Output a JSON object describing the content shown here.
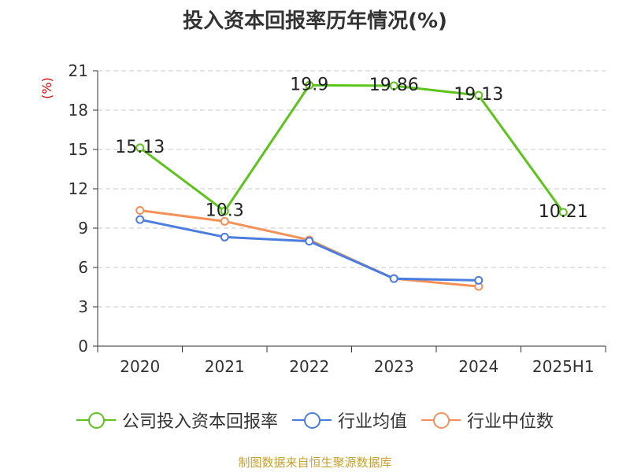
{
  "title": "投入资本回报率历年情况(%)",
  "source": "制图数据来自恒生聚源数据库",
  "chart_data": {
    "type": "line",
    "title": "投入资本回报率历年情况(%)",
    "ylabel": "(%)",
    "xlabel": "",
    "categories": [
      "2020",
      "2021",
      "2022",
      "2023",
      "2024",
      "2025H1"
    ],
    "ylim": [
      0,
      21
    ],
    "yticks": [
      0,
      3,
      6,
      9,
      12,
      15,
      18,
      21
    ],
    "grid": true,
    "legend_position": "bottom",
    "series": [
      {
        "name": "公司投入资本回报率",
        "color": "#5cc41a",
        "values": [
          15.13,
          10.3,
          19.9,
          19.86,
          19.13,
          10.21
        ],
        "labels": [
          "15.13",
          "10.3",
          "19.9",
          "19.86",
          "19.13",
          "10.21"
        ]
      },
      {
        "name": "行业均值",
        "color": "#4a7de0",
        "values": [
          9.65,
          8.32,
          8.0,
          5.15,
          5.02,
          null
        ]
      },
      {
        "name": "行业中位数",
        "color": "#f59058",
        "values": [
          10.35,
          9.52,
          8.1,
          5.15,
          4.55,
          null
        ]
      }
    ]
  }
}
